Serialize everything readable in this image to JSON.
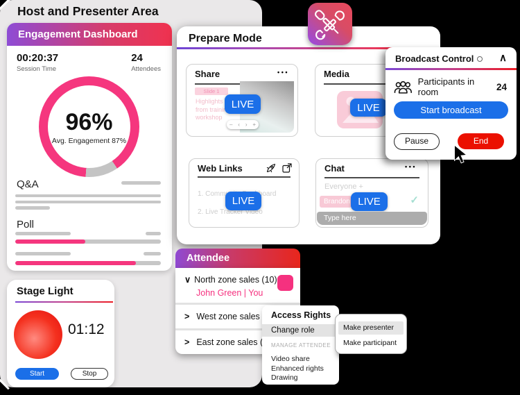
{
  "page": {
    "title": "Host and Presenter Area"
  },
  "colors": {
    "accent_blue": "#1B6FE8",
    "end_red": "#EB1000",
    "accent_pink": "#F5317F",
    "pink_light": "#F9CBD8",
    "gradient_purple": "#8E4CD5",
    "gradient_red": "#EC1C24",
    "teal_check": "#A6DFD2",
    "bar_gray": "#C7C7C7"
  },
  "icons": {
    "ellipsis": "•••",
    "chevron_up": "∧",
    "chevron_expanded": "∨",
    "chevron_collapsed": ">",
    "check": "✓",
    "nav_minus": "–",
    "nav_prev": "‹",
    "nav_next": "›",
    "nav_plus": "+"
  },
  "engagement_dashboard": {
    "title": "Engagement Dashboard",
    "session_time": "00:20:37",
    "session_time_label": "Session Time",
    "attendees_count": "24",
    "attendees_label": "Attendees",
    "engagement_value": "96%",
    "engagement_caption": "Avg. Engagement 87%",
    "qa": {
      "label": "Q&A"
    },
    "poll": {
      "label": "Poll",
      "bars": [
        {
          "fill": 48
        },
        {
          "fill": 83
        }
      ]
    }
  },
  "stage_light": {
    "title": "Stage Light",
    "timer": "01:12",
    "start_label": "Start",
    "stop_label": "Stop"
  },
  "prepare_mode": {
    "title": "Prepare Mode",
    "live_label": "LIVE",
    "share": {
      "title": "Share",
      "slide_badge": "Slide 1",
      "caption": "Highlights from training workshop"
    },
    "media": {
      "title": "Media"
    },
    "web_links": {
      "title": "Web Links",
      "items": [
        "1. Community Dashboard",
        "2. Live Tracker Video"
      ]
    },
    "chat": {
      "title": "Chat",
      "audience": "Everyone +",
      "message_author": "Brandon",
      "input_placeholder": "Type here"
    }
  },
  "broadcast_control": {
    "title": "Broadcast Control",
    "participants_label": "Participants in room",
    "participants_count": "24",
    "start_label": "Start broadcast",
    "pause_label": "Pause",
    "end_label": "End"
  },
  "attendee_panel": {
    "title": "Attendee",
    "groups": [
      {
        "label": "North zone sales (10)",
        "member": "John Green | You"
      },
      {
        "label": "West zone sales (10)"
      },
      {
        "label": "East zone sales (12)"
      }
    ]
  },
  "context_menu": {
    "title": "Access Rights",
    "highlighted_item": "Change role",
    "section_label": "MANAGE ATTENDEE",
    "items": [
      "Video share",
      "Enhanced rights",
      "Drawing"
    ]
  },
  "role_submenu": {
    "items": [
      "Make presenter",
      "Make participant"
    ]
  }
}
